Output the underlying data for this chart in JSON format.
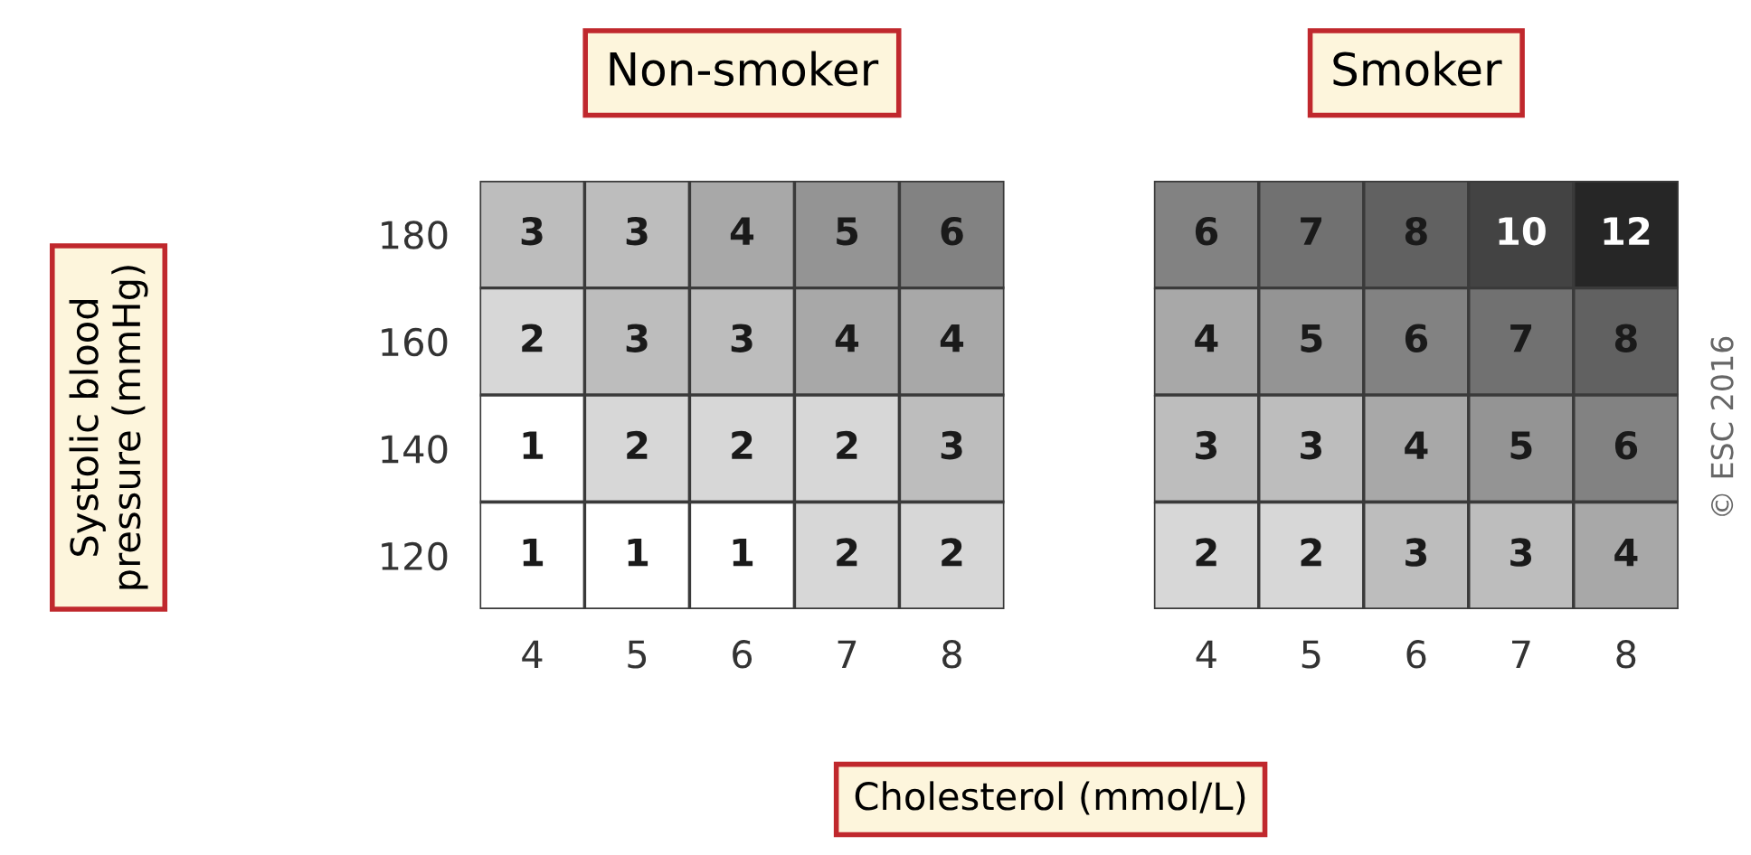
{
  "chart_data": [
    {
      "type": "heatmap",
      "title": "Non-smoker",
      "ylabel": "Systolic blood\npressure (mmHg)",
      "xlabel": "Cholesterol (mmol/L)",
      "categories": [
        "4",
        "5",
        "6",
        "7",
        "8"
      ],
      "y_categories": [
        "180",
        "160",
        "140",
        "120"
      ],
      "cells": [
        [
          3,
          3,
          4,
          5,
          6
        ],
        [
          2,
          3,
          3,
          4,
          4
        ],
        [
          1,
          2,
          2,
          2,
          3
        ],
        [
          1,
          1,
          1,
          2,
          2
        ]
      ],
      "data_labels": true
    },
    {
      "type": "heatmap",
      "title": "Smoker",
      "categories": [
        "4",
        "5",
        "6",
        "7",
        "8"
      ],
      "y_categories": [
        "180",
        "160",
        "140",
        "120"
      ],
      "cells": [
        [
          6,
          7,
          8,
          10,
          12
        ],
        [
          4,
          5,
          6,
          7,
          8
        ],
        [
          3,
          3,
          4,
          5,
          6
        ],
        [
          2,
          2,
          3,
          3,
          4
        ]
      ],
      "data_labels": true,
      "tick_labels": "x",
      "annotations": [
        "© ESC 2016"
      ]
    }
  ]
}
